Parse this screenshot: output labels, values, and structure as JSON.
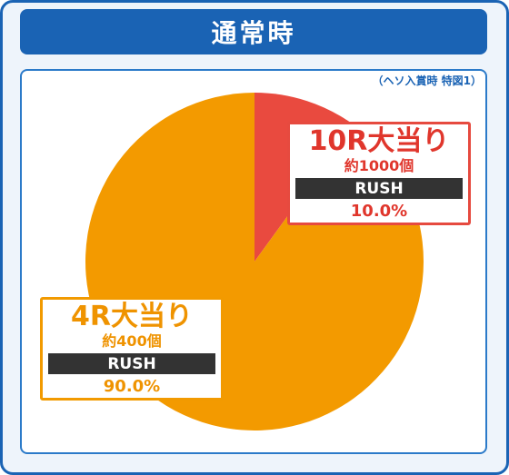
{
  "header": {
    "title": "通常時"
  },
  "note": "（ヘソ入賞時 特図1）",
  "colors": {
    "frame": "#1a63b4",
    "slice10": "#e94a3f",
    "slice4": "#f39a00"
  },
  "chart_data": {
    "type": "pie",
    "title": "",
    "slices": [
      {
        "label": "10R大当り",
        "sub": "約1000個",
        "tag": "RUSH",
        "value": 10.0,
        "pct_label": "10.0%",
        "color": "#e94a3f"
      },
      {
        "label": "4R大当り",
        "sub": "約400個",
        "tag": "RUSH",
        "value": 90.0,
        "pct_label": "90.0%",
        "color": "#f39a00"
      }
    ]
  }
}
